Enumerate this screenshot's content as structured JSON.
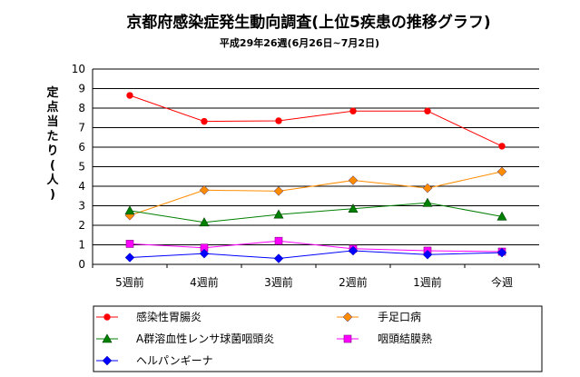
{
  "chart_data": {
    "type": "line",
    "title": "京都府感染症発生動向調査(上位5疾患の推移グラフ)",
    "subtitle": "平成29年26週(6月26日~7月2日)",
    "ylabel": "定点当たり(人)",
    "xlabel": "",
    "ylim": [
      0,
      10
    ],
    "yticks": [
      0,
      1,
      2,
      3,
      4,
      5,
      6,
      7,
      8,
      9,
      10
    ],
    "grid": true,
    "legend_position": "bottom",
    "categories": [
      "5週前",
      "4週前",
      "3週前",
      "2週前",
      "1週前",
      "今週"
    ],
    "series": [
      {
        "name": "感染性胃腸炎",
        "color": "#ff0000",
        "marker": "circle",
        "values": [
          8.65,
          7.32,
          7.35,
          7.85,
          7.85,
          6.05
        ]
      },
      {
        "name": "手足口病",
        "color": "#ff8c00",
        "marker": "diamond",
        "values": [
          2.5,
          3.8,
          3.75,
          4.3,
          3.9,
          4.75
        ]
      },
      {
        "name": "A群溶血性レンサ球菌咽頭炎",
        "color": "#008000",
        "marker": "triangle",
        "values": [
          2.75,
          2.15,
          2.55,
          2.85,
          3.15,
          2.45
        ]
      },
      {
        "name": "咽頭結膜熱",
        "color": "#ff00ff",
        "marker": "square",
        "values": [
          1.05,
          0.85,
          1.2,
          0.8,
          0.7,
          0.65
        ]
      },
      {
        "name": "ヘルパンギーナ",
        "color": "#0000ff",
        "marker": "diamond",
        "values": [
          0.35,
          0.55,
          0.3,
          0.7,
          0.5,
          0.6
        ]
      }
    ]
  }
}
